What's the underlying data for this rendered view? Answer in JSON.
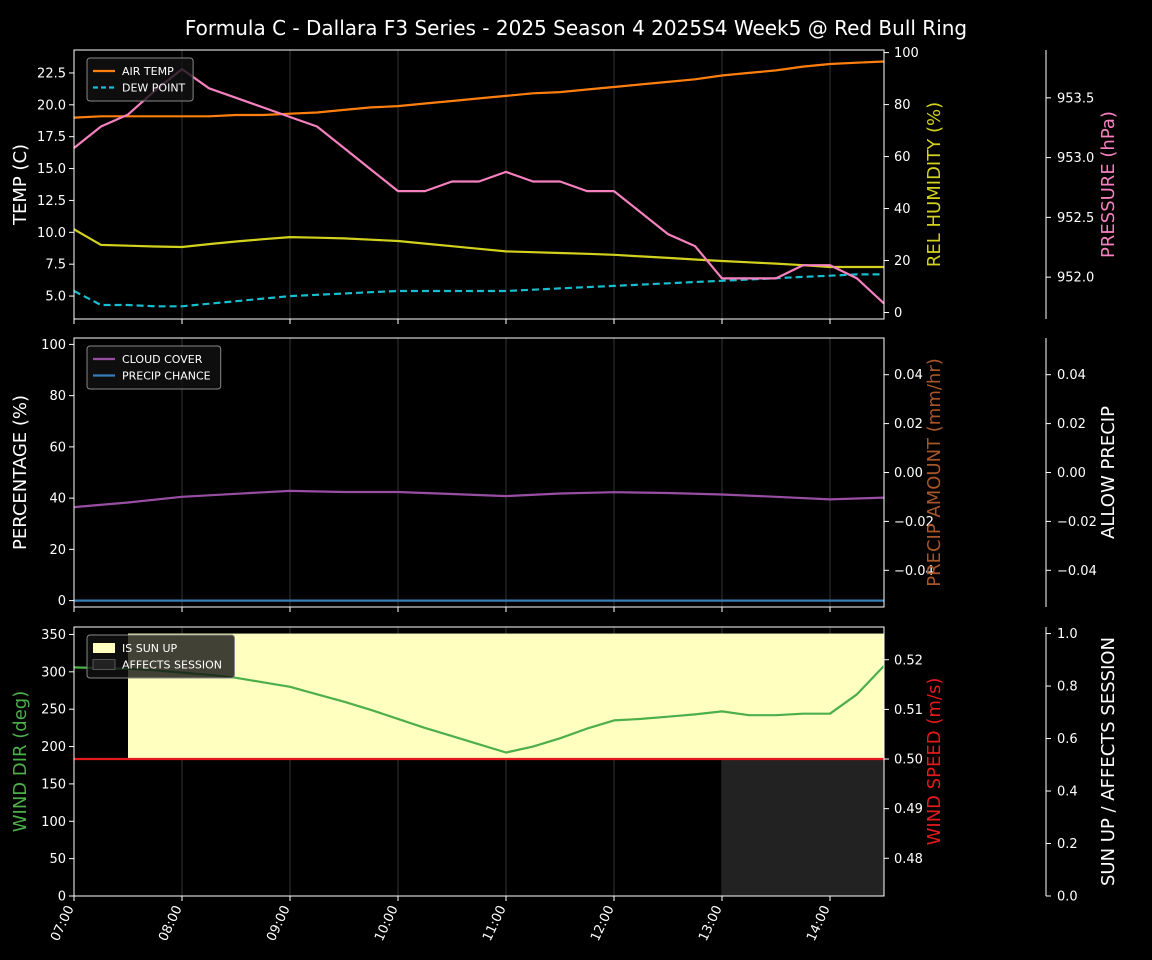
{
  "title": "Formula C -  Dallara F3 Series - 2025 Season 4 2025S4 Week5 @ Red Bull Ring",
  "colors": {
    "background": "#000000",
    "foreground": "#ffffff",
    "air_temp": "#ff7f0e",
    "dew_point": "#17becf",
    "humidity": "#d2d21e",
    "pressure": "#f781bf",
    "cloud": "#984ea3",
    "precip_chance": "#377eb8",
    "precip_amount": "#a65628",
    "wind_dir": "#4daf4a",
    "wind_speed": "#e41a1c",
    "sun_up": "#ffffc0",
    "affects_session": "#222222"
  },
  "x_axis": {
    "ticks": [
      "07:00",
      "08:00",
      "09:00",
      "10:00",
      "11:00",
      "12:00",
      "13:00",
      "14:00"
    ],
    "range_hours": [
      7.0,
      14.5
    ]
  },
  "chart_data": [
    {
      "type": "line",
      "panel": "temperature",
      "ylabel": "TEMP (C)",
      "ylabel_right": "REL HUMIDITY (%)",
      "ylabel_far_right": "PRESSURE (hPa)",
      "ylim": [
        3.2,
        24.3
      ],
      "ylim_right": [
        -2.5,
        101
      ],
      "ylim_far_right": [
        951.65,
        953.9
      ],
      "yticks": [
        "5.0",
        "7.5",
        "10.0",
        "12.5",
        "15.0",
        "17.5",
        "20.0",
        "22.5"
      ],
      "yticks_right": [
        "0",
        "20",
        "40",
        "60",
        "80",
        "100"
      ],
      "yticks_far_right": [
        "952.0",
        "952.5",
        "953.0",
        "953.5"
      ],
      "grid": "vertical",
      "legend_position": "top-left",
      "x_hours": [
        7.0,
        7.25,
        7.5,
        7.75,
        8.0,
        8.25,
        8.5,
        8.75,
        9.0,
        9.25,
        9.5,
        9.75,
        10.0,
        10.25,
        10.5,
        10.75,
        11.0,
        11.25,
        11.5,
        11.75,
        12.0,
        12.25,
        12.5,
        12.75,
        13.0,
        13.25,
        13.5,
        13.75,
        14.0,
        14.25,
        14.5
      ],
      "series": [
        {
          "name": "AIR TEMP",
          "axis": "left",
          "style": "solid",
          "values": [
            19.0,
            19.1,
            19.1,
            19.1,
            19.1,
            19.1,
            19.2,
            19.2,
            19.3,
            19.4,
            19.6,
            19.8,
            19.9,
            20.1,
            20.3,
            20.5,
            20.7,
            20.9,
            21.0,
            21.2,
            21.4,
            21.6,
            21.8,
            22.0,
            22.3,
            22.5,
            22.7,
            23.0,
            23.2,
            23.3,
            23.4
          ]
        },
        {
          "name": "DEW POINT",
          "axis": "left",
          "style": "dashed",
          "values": [
            5.4,
            4.3,
            4.3,
            4.2,
            4.2,
            4.4,
            4.6,
            4.8,
            5.0,
            5.1,
            5.2,
            5.3,
            5.4,
            5.4,
            5.4,
            5.4,
            5.4,
            5.5,
            5.6,
            5.7,
            5.8,
            5.9,
            6.0,
            6.1,
            6.2,
            6.3,
            6.4,
            6.5,
            6.6,
            6.7,
            6.7
          ]
        },
        {
          "axis": "right",
          "style": "solid",
          "values": [
            32,
            26,
            25.7,
            25.4,
            25.2,
            26.3,
            27.3,
            28.2,
            29,
            28.8,
            28.5,
            28,
            27.5,
            26.5,
            25.5,
            24.5,
            23.5,
            23.2,
            22.9,
            22.6,
            22.2,
            21.6,
            21,
            20.4,
            19.8,
            19.3,
            18.8,
            18.2,
            17.5,
            17.5,
            17.5
          ]
        },
        {
          "axis": "far_right",
          "style": "solid",
          "values": [
            953.08,
            953.26,
            953.36,
            953.56,
            953.74,
            953.58,
            953.5,
            953.42,
            953.34,
            953.26,
            953.08,
            952.9,
            952.72,
            952.72,
            952.8,
            952.8,
            952.88,
            952.8,
            952.8,
            952.72,
            952.72,
            952.54,
            952.36,
            952.26,
            951.99,
            951.99,
            951.99,
            952.1,
            952.1,
            951.99,
            951.78
          ]
        }
      ]
    },
    {
      "type": "line",
      "panel": "precipitation",
      "ylabel": "PERCENTAGE (%)",
      "ylabel_right": "PRECIP AMOUNT (mm/hr)",
      "ylabel_far_right": "ALLOW PRECIP",
      "ylim": [
        -2.5,
        102.5
      ],
      "ylim_right": [
        -0.055,
        0.055
      ],
      "ylim_far_right": [
        -0.055,
        0.055
      ],
      "yticks": [
        "0",
        "20",
        "40",
        "60",
        "80",
        "100"
      ],
      "yticks_right": [
        "−0.04",
        "−0.02",
        "0.00",
        "0.02",
        "0.04"
      ],
      "yticks_far_right": [
        "−0.04",
        "−0.02",
        "0.00",
        "0.02",
        "0.04"
      ],
      "grid": "vertical",
      "legend_position": "top-left",
      "x_hours": [
        7.0,
        7.5,
        8.0,
        8.5,
        9.0,
        9.5,
        10.0,
        10.5,
        11.0,
        11.5,
        12.0,
        12.5,
        13.0,
        13.5,
        14.0,
        14.5
      ],
      "series": [
        {
          "name": "CLOUD COVER",
          "axis": "left",
          "values": [
            36.5,
            38.3,
            40.5,
            41.7,
            42.8,
            42.4,
            42.4,
            41.6,
            40.8,
            41.8,
            42.3,
            42.0,
            41.4,
            40.5,
            39.5,
            40.2
          ]
        },
        {
          "name": "PRECIP CHANCE",
          "axis": "left",
          "values": [
            0,
            0,
            0,
            0,
            0,
            0,
            0,
            0,
            0,
            0,
            0,
            0,
            0,
            0,
            0,
            0
          ]
        }
      ]
    },
    {
      "type": "line",
      "panel": "wind",
      "ylabel": "WIND DIR (deg)",
      "ylabel_right": "WIND SPEED (m/s)",
      "ylabel_far_right": "SUN UP / AFFECTS SESSION",
      "ylim": [
        0,
        360
      ],
      "ylim_right": [
        0.4724,
        0.5266
      ],
      "ylim_far_right": [
        0,
        1.025
      ],
      "yticks": [
        "0",
        "50",
        "100",
        "150",
        "200",
        "250",
        "300",
        "350"
      ],
      "yticks_right": [
        "0.48",
        "0.49",
        "0.50",
        "0.51",
        "0.52"
      ],
      "yticks_far_right": [
        "0.0",
        "0.2",
        "0.4",
        "0.6",
        "0.8",
        "1.0"
      ],
      "grid": "vertical",
      "legend_position": "top-left",
      "sun_up": {
        "name": "IS SUN UP",
        "from_hour": 7.5,
        "to_hour": 14.5
      },
      "affects_session": {
        "name": "AFFECTS SESSION",
        "from_hour": 13.0,
        "to_hour": 14.5
      },
      "x_hours": [
        7.0,
        7.25,
        7.5,
        7.75,
        8.0,
        8.25,
        8.5,
        8.75,
        9.0,
        9.25,
        9.5,
        9.75,
        10.0,
        10.25,
        10.5,
        10.75,
        11.0,
        11.25,
        11.5,
        11.75,
        12.0,
        12.25,
        12.5,
        12.75,
        13.0,
        13.25,
        13.5,
        13.75,
        14.0,
        14.25,
        14.5
      ],
      "series": [
        {
          "axis": "left",
          "values": [
            306,
            305,
            304,
            302,
            299,
            296,
            292,
            286,
            280,
            270,
            260,
            249,
            237,
            225,
            214,
            203,
            192,
            200,
            211,
            224,
            235,
            237,
            240,
            243,
            247,
            242,
            242,
            244,
            244,
            270,
            308
          ]
        },
        {
          "axis": "right",
          "values": [
            0.5,
            0.5,
            0.5,
            0.5,
            0.5,
            0.5,
            0.5,
            0.5,
            0.5,
            0.5,
            0.5,
            0.5,
            0.5,
            0.5,
            0.5,
            0.5,
            0.5,
            0.5,
            0.5,
            0.5,
            0.5,
            0.5,
            0.5,
            0.5,
            0.5,
            0.5,
            0.5,
            0.5,
            0.5,
            0.5,
            0.5
          ]
        }
      ]
    }
  ]
}
